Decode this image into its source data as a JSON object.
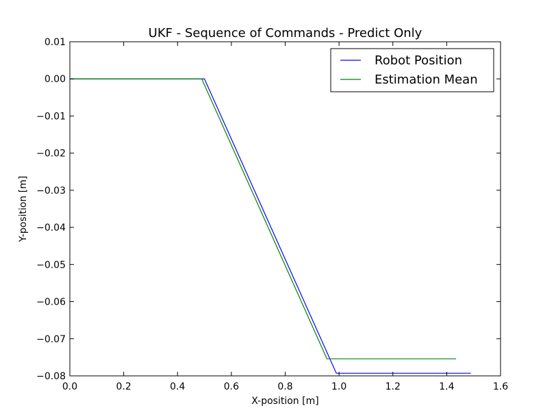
{
  "chart_data": {
    "type": "line",
    "title": "UKF - Sequence of Commands - Predict Only",
    "xlabel": "X-position [m]",
    "ylabel": "Y-position [m]",
    "xlim": [
      0.0,
      1.6
    ],
    "ylim": [
      -0.08,
      0.01
    ],
    "xticks": [
      "0.0",
      "0.2",
      "0.4",
      "0.6",
      "0.8",
      "1.0",
      "1.2",
      "1.4",
      "1.6"
    ],
    "yticks": [
      "0.01",
      "0.00",
      "−0.01",
      "−0.02",
      "−0.03",
      "−0.04",
      "−0.05",
      "−0.06",
      "−0.07",
      "−0.08"
    ],
    "grid": false,
    "legend_position": "top-right",
    "series": [
      {
        "name": "Robot Position",
        "color": "#0000ff",
        "x": [
          0.0,
          0.5,
          0.99,
          1.49
        ],
        "y": [
          0.0,
          0.0,
          -0.0793,
          -0.0793
        ]
      },
      {
        "name": "Estimation Mean",
        "color": "#008000",
        "x": [
          0.0,
          0.49,
          0.955,
          1.435
        ],
        "y": [
          0.0,
          0.0,
          -0.0754,
          -0.0754
        ]
      }
    ]
  }
}
